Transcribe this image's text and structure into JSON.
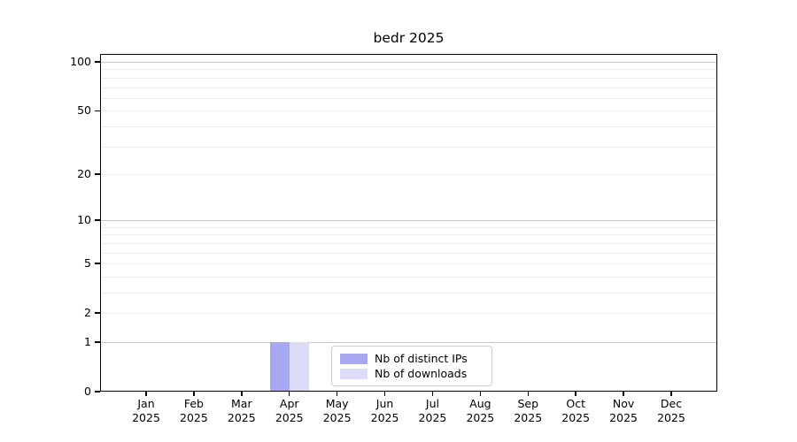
{
  "chart_data": {
    "type": "bar",
    "title": "bedr 2025",
    "categories": [
      {
        "label": "Jan",
        "sublabel": "2025"
      },
      {
        "label": "Feb",
        "sublabel": "2025"
      },
      {
        "label": "Mar",
        "sublabel": "2025"
      },
      {
        "label": "Apr",
        "sublabel": "2025"
      },
      {
        "label": "May",
        "sublabel": "2025"
      },
      {
        "label": "Jun",
        "sublabel": "2025"
      },
      {
        "label": "Jul",
        "sublabel": "2025"
      },
      {
        "label": "Aug",
        "sublabel": "2025"
      },
      {
        "label": "Sep",
        "sublabel": "2025"
      },
      {
        "label": "Oct",
        "sublabel": "2025"
      },
      {
        "label": "Nov",
        "sublabel": "2025"
      },
      {
        "label": "Dec",
        "sublabel": "2025"
      }
    ],
    "series": [
      {
        "name": "Nb of distinct IPs",
        "color": "#a8a8f2",
        "values": [
          0,
          0,
          0,
          1,
          0,
          0,
          0,
          0,
          0,
          0,
          0,
          0
        ]
      },
      {
        "name": "Nb of downloads",
        "color": "#dcdcf8",
        "values": [
          0,
          0,
          0,
          1,
          0,
          0,
          0,
          0,
          0,
          0,
          0,
          0
        ]
      }
    ],
    "xlabel": "",
    "ylabel": "",
    "yaxis": {
      "scale": "log10(1+x)",
      "tick_values": [
        0,
        1,
        2,
        5,
        10,
        20,
        50,
        100
      ],
      "tick_labels": [
        "0",
        "1",
        "2",
        "5",
        "10",
        "20",
        "50",
        "100"
      ],
      "minor_gridlines": [
        2,
        3,
        4,
        5,
        6,
        7,
        8,
        9,
        20,
        30,
        40,
        50,
        60,
        70,
        80,
        90
      ],
      "major_gridlines": [
        1,
        10,
        100
      ],
      "ylim": [
        0,
        112
      ]
    },
    "legend": {
      "position": "lower center"
    },
    "grid": true,
    "colors": {
      "minor_grid": "#ededed",
      "major_grid": "#c8c8c8",
      "legend_border": "#cccccc"
    }
  }
}
